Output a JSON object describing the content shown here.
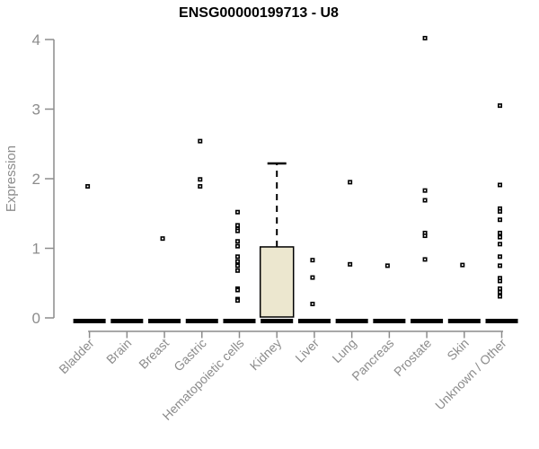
{
  "title": "ENSG00000199713 - U8",
  "chart_data": {
    "type": "boxplot",
    "title": "ENSG00000199713 - U8",
    "ylabel": "Expression",
    "xlabel": "",
    "ylim": [
      0,
      4
    ],
    "yticks": [
      0,
      1,
      2,
      3,
      4
    ],
    "grid": false,
    "legend": false,
    "categories": [
      "Bladder",
      "Brain",
      "Breast",
      "Gastric",
      "Hematopoietic cells",
      "Kidney",
      "Liver",
      "Lung",
      "Pancreas",
      "Prostate",
      "Skin",
      "Unknown / Other"
    ],
    "colors": {
      "axis": "#8c8c8c",
      "tick_label": "#8c8c8c",
      "title": "#000000",
      "box_fill": "#ece7cf",
      "box_stroke": "#000000",
      "point": "#000000"
    },
    "series": [
      {
        "category": "Bladder",
        "median": 0,
        "q1": 0,
        "q3": 0,
        "points": [
          1.89
        ]
      },
      {
        "category": "Brain",
        "median": 0,
        "q1": 0,
        "q3": 0,
        "points": []
      },
      {
        "category": "Breast",
        "median": 0,
        "q1": 0,
        "q3": 0,
        "points": [
          1.14
        ]
      },
      {
        "category": "Gastric",
        "median": 0,
        "q1": 0,
        "q3": 0,
        "points": [
          2.54,
          1.99,
          1.89
        ]
      },
      {
        "category": "Hematopoietic cells",
        "median": 0,
        "q1": 0,
        "q3": 0,
        "points": [
          1.52,
          1.33,
          1.28,
          1.25,
          1.1,
          1.03,
          0.88,
          0.81,
          0.75,
          0.68,
          0.42,
          0.4,
          0.27,
          0.25
        ]
      },
      {
        "category": "Kidney",
        "median": 0,
        "q1": 0,
        "q3": 1.02,
        "whisker_high": 2.22,
        "points": []
      },
      {
        "category": "Liver",
        "median": 0,
        "q1": 0,
        "q3": 0,
        "points": [
          0.83,
          0.58,
          0.2
        ]
      },
      {
        "category": "Lung",
        "median": 0,
        "q1": 0,
        "q3": 0,
        "points": [
          1.95,
          0.77
        ]
      },
      {
        "category": "Pancreas",
        "median": 0,
        "q1": 0,
        "q3": 0,
        "points": [
          0.75
        ]
      },
      {
        "category": "Prostate",
        "median": 0,
        "q1": 0,
        "q3": 0,
        "points": [
          4.02,
          1.83,
          1.69,
          1.22,
          1.18,
          0.84
        ]
      },
      {
        "category": "Skin",
        "median": 0,
        "q1": 0,
        "q3": 0,
        "points": [
          0.76
        ]
      },
      {
        "category": "Unknown / Other",
        "median": 0,
        "q1": 0,
        "q3": 0,
        "points": [
          3.05,
          1.91,
          1.57,
          1.53,
          1.41,
          1.22,
          1.16,
          1.06,
          0.88,
          0.75,
          0.57,
          0.53,
          0.42,
          0.37,
          0.31
        ]
      }
    ]
  }
}
